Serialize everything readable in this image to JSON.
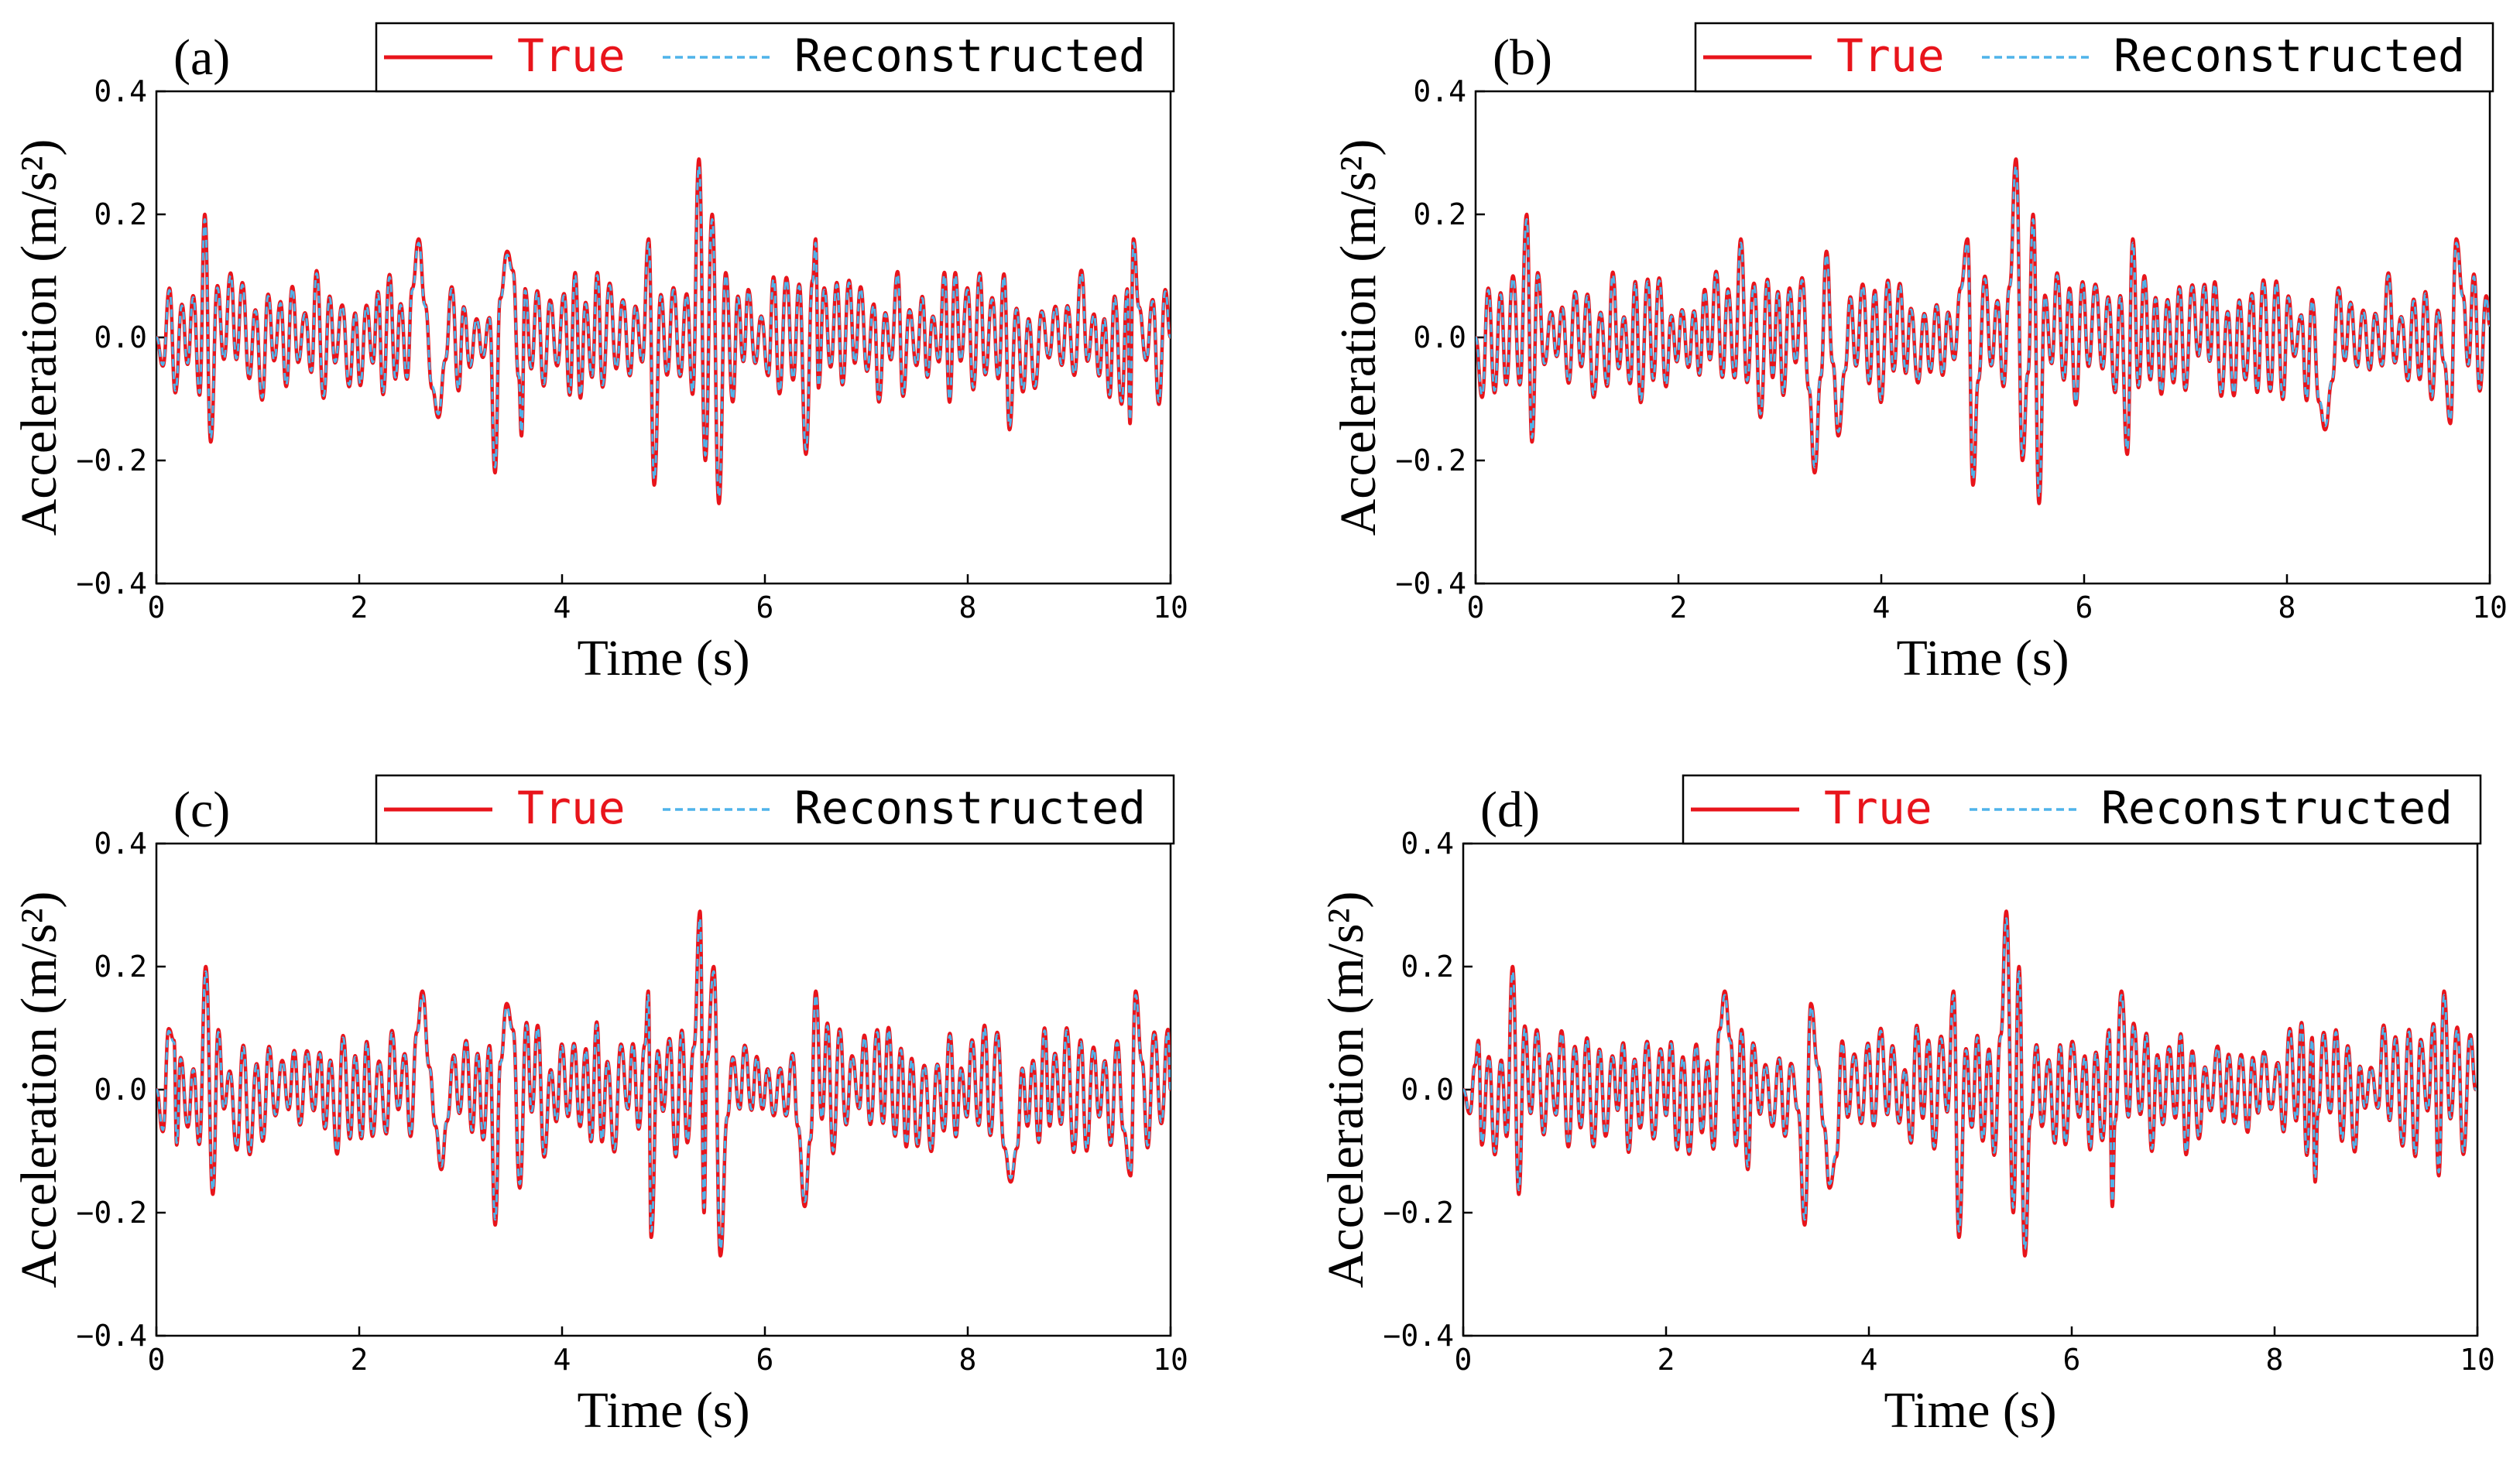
{
  "chart_data": [
    {
      "type": "line",
      "panel_label": "(a)",
      "xlabel": "Time (s)",
      "ylabel": "Acceleration (m/s²)",
      "xlim": [
        0,
        10
      ],
      "ylim": [
        -0.4,
        0.4
      ],
      "xticks": [
        0,
        2,
        4,
        6,
        8,
        10
      ],
      "yticks": [
        -0.4,
        -0.2,
        0.0,
        0.2,
        0.4
      ],
      "xtick_labels": [
        "0",
        "2",
        "4",
        "6",
        "8",
        "10"
      ],
      "ytick_labels": [
        "−0.4",
        "−0.2",
        "0.0",
        "0.2",
        "0.4"
      ],
      "legend": {
        "position": "top-right",
        "entries": [
          "True",
          "Reconstructed"
        ]
      },
      "series": [
        {
          "name": "True",
          "color": "#e8141b",
          "style": "solid"
        },
        {
          "name": "Reconstructed",
          "color": "#4fb3ea",
          "style": "dashed"
        }
      ],
      "peaks": [
        {
          "x": 0.0,
          "y": 0.0
        },
        {
          "x": 0.15,
          "y": 0.08
        },
        {
          "x": 0.2,
          "y": -0.09
        },
        {
          "x": 0.5,
          "y": 0.2
        },
        {
          "x": 0.55,
          "y": -0.17
        },
        {
          "x": 1.1,
          "y": 0.07
        },
        {
          "x": 1.9,
          "y": -0.08
        },
        {
          "x": 2.6,
          "y": 0.16
        },
        {
          "x": 2.8,
          "y": -0.13
        },
        {
          "x": 3.35,
          "y": -0.22
        },
        {
          "x": 3.45,
          "y": 0.14
        },
        {
          "x": 3.6,
          "y": -0.16
        },
        {
          "x": 4.85,
          "y": 0.16
        },
        {
          "x": 4.9,
          "y": -0.24
        },
        {
          "x": 5.35,
          "y": 0.29
        },
        {
          "x": 5.4,
          "y": -0.2
        },
        {
          "x": 5.5,
          "y": 0.2
        },
        {
          "x": 5.55,
          "y": -0.27
        },
        {
          "x": 6.4,
          "y": -0.19
        },
        {
          "x": 6.5,
          "y": 0.16
        },
        {
          "x": 8.4,
          "y": -0.15
        },
        {
          "x": 9.6,
          "y": -0.14
        },
        {
          "x": 9.65,
          "y": 0.16
        },
        {
          "x": 10.0,
          "y": 0.0
        }
      ]
    },
    {
      "type": "line",
      "panel_label": "(b)",
      "xlabel": "Time (s)",
      "ylabel": "Acceleration (m/s²)",
      "xlim": [
        0,
        10
      ],
      "ylim": [
        -0.4,
        0.4
      ],
      "xticks": [
        0,
        2,
        4,
        6,
        8,
        10
      ],
      "yticks": [
        -0.4,
        -0.2,
        0.0,
        0.2,
        0.4
      ],
      "xtick_labels": [
        "0",
        "2",
        "4",
        "6",
        "8",
        "10"
      ],
      "ytick_labels": [
        "−0.4",
        "−0.2",
        "0.0",
        "0.2",
        "0.4"
      ],
      "legend": {
        "position": "top-right",
        "entries": [
          "True",
          "Reconstructed"
        ]
      },
      "series": [
        {
          "name": "True",
          "color": "#e8141b",
          "style": "solid"
        },
        {
          "name": "Reconstructed",
          "color": "#4fb3ea",
          "style": "dashed"
        }
      ],
      "peaks": [
        {
          "x": 0.0,
          "y": 0.0
        },
        {
          "x": 0.15,
          "y": 0.08
        },
        {
          "x": 0.2,
          "y": -0.09
        },
        {
          "x": 0.5,
          "y": 0.2
        },
        {
          "x": 0.55,
          "y": -0.17
        },
        {
          "x": 1.1,
          "y": 0.07
        },
        {
          "x": 1.9,
          "y": -0.08
        },
        {
          "x": 2.6,
          "y": 0.16
        },
        {
          "x": 2.8,
          "y": -0.13
        },
        {
          "x": 3.35,
          "y": -0.22
        },
        {
          "x": 3.45,
          "y": 0.14
        },
        {
          "x": 3.6,
          "y": -0.16
        },
        {
          "x": 4.85,
          "y": 0.16
        },
        {
          "x": 4.9,
          "y": -0.24
        },
        {
          "x": 5.35,
          "y": 0.29
        },
        {
          "x": 5.4,
          "y": -0.2
        },
        {
          "x": 5.5,
          "y": 0.2
        },
        {
          "x": 5.55,
          "y": -0.27
        },
        {
          "x": 6.4,
          "y": -0.19
        },
        {
          "x": 6.5,
          "y": 0.16
        },
        {
          "x": 8.4,
          "y": -0.15
        },
        {
          "x": 9.6,
          "y": -0.14
        },
        {
          "x": 9.65,
          "y": 0.16
        },
        {
          "x": 10.0,
          "y": 0.02
        }
      ]
    },
    {
      "type": "line",
      "panel_label": "(c)",
      "xlabel": "Time (s)",
      "ylabel": "Acceleration (m/s²)",
      "xlim": [
        0,
        10
      ],
      "ylim": [
        -0.4,
        0.4
      ],
      "xticks": [
        0,
        2,
        4,
        6,
        8,
        10
      ],
      "yticks": [
        -0.4,
        -0.2,
        0.0,
        0.2,
        0.4
      ],
      "xtick_labels": [
        "0",
        "2",
        "4",
        "6",
        "8",
        "10"
      ],
      "ytick_labels": [
        "−0.4",
        "−0.2",
        "0.0",
        "0.2",
        "0.4"
      ],
      "legend": {
        "position": "top-right",
        "entries": [
          "True",
          "Reconstructed"
        ]
      },
      "series": [
        {
          "name": "True",
          "color": "#e8141b",
          "style": "solid"
        },
        {
          "name": "Reconstructed",
          "color": "#4fb3ea",
          "style": "dashed"
        }
      ],
      "peaks": [
        {
          "x": 0.0,
          "y": 0.0
        },
        {
          "x": 0.15,
          "y": 0.08
        },
        {
          "x": 0.2,
          "y": -0.09
        },
        {
          "x": 0.5,
          "y": 0.2
        },
        {
          "x": 0.55,
          "y": -0.17
        },
        {
          "x": 1.1,
          "y": 0.07
        },
        {
          "x": 1.9,
          "y": -0.08
        },
        {
          "x": 2.6,
          "y": 0.16
        },
        {
          "x": 2.8,
          "y": -0.13
        },
        {
          "x": 3.35,
          "y": -0.22
        },
        {
          "x": 3.45,
          "y": 0.14
        },
        {
          "x": 3.6,
          "y": -0.16
        },
        {
          "x": 4.85,
          "y": 0.16
        },
        {
          "x": 4.9,
          "y": -0.24
        },
        {
          "x": 5.35,
          "y": 0.29
        },
        {
          "x": 5.4,
          "y": -0.2
        },
        {
          "x": 5.5,
          "y": 0.2
        },
        {
          "x": 5.55,
          "y": -0.27
        },
        {
          "x": 6.4,
          "y": -0.19
        },
        {
          "x": 6.5,
          "y": 0.16
        },
        {
          "x": 8.4,
          "y": -0.15
        },
        {
          "x": 9.6,
          "y": -0.14
        },
        {
          "x": 9.65,
          "y": 0.16
        },
        {
          "x": 10.0,
          "y": 0.0
        }
      ]
    },
    {
      "type": "line",
      "panel_label": "(d)",
      "xlabel": "Time (s)",
      "ylabel": "Acceleration (m/s²)",
      "xlim": [
        0,
        10
      ],
      "ylim": [
        -0.4,
        0.4
      ],
      "xticks": [
        0,
        2,
        4,
        6,
        8,
        10
      ],
      "yticks": [
        -0.4,
        -0.2,
        0.0,
        0.2,
        0.4
      ],
      "xtick_labels": [
        "0",
        "2",
        "4",
        "6",
        "8",
        "10"
      ],
      "ytick_labels": [
        "−0.4",
        "−0.2",
        "0.0",
        "0.2",
        "0.4"
      ],
      "legend": {
        "position": "top-right",
        "entries": [
          "True",
          "Reconstructed"
        ]
      },
      "series": [
        {
          "name": "True",
          "color": "#e8141b",
          "style": "solid"
        },
        {
          "name": "Reconstructed",
          "color": "#4fb3ea",
          "style": "dashed"
        }
      ],
      "peaks": [
        {
          "x": 0.0,
          "y": 0.0
        },
        {
          "x": 0.15,
          "y": 0.08
        },
        {
          "x": 0.2,
          "y": -0.09
        },
        {
          "x": 0.5,
          "y": 0.2
        },
        {
          "x": 0.55,
          "y": -0.17
        },
        {
          "x": 1.1,
          "y": 0.07
        },
        {
          "x": 1.9,
          "y": -0.08
        },
        {
          "x": 2.6,
          "y": 0.16
        },
        {
          "x": 2.8,
          "y": -0.13
        },
        {
          "x": 3.35,
          "y": -0.22
        },
        {
          "x": 3.45,
          "y": 0.14
        },
        {
          "x": 3.6,
          "y": -0.16
        },
        {
          "x": 4.85,
          "y": 0.16
        },
        {
          "x": 4.9,
          "y": -0.24
        },
        {
          "x": 5.35,
          "y": 0.29
        },
        {
          "x": 5.4,
          "y": -0.2
        },
        {
          "x": 5.5,
          "y": 0.2
        },
        {
          "x": 5.55,
          "y": -0.27
        },
        {
          "x": 6.4,
          "y": -0.19
        },
        {
          "x": 6.5,
          "y": 0.16
        },
        {
          "x": 8.4,
          "y": -0.15
        },
        {
          "x": 9.6,
          "y": -0.14
        },
        {
          "x": 9.65,
          "y": 0.16
        },
        {
          "x": 10.0,
          "y": 0.0
        }
      ]
    }
  ]
}
